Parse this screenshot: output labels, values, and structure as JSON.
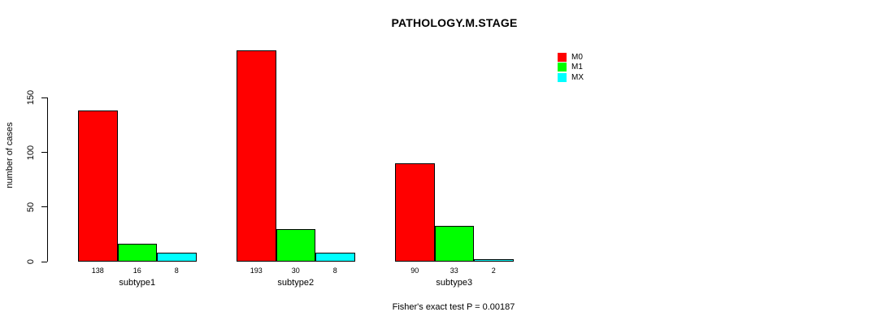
{
  "figure": {
    "title": "PATHOLOGY.M.STAGE",
    "y_axis_label": "number of cases",
    "footer_annotation": "Fisher's exact test P = 0.00187"
  },
  "legend": {
    "position": "top-right",
    "items": [
      {
        "label": "M0",
        "color": "#ff0000"
      },
      {
        "label": "M1",
        "color": "#00ff00"
      },
      {
        "label": "MX",
        "color": "#00ffff"
      }
    ]
  },
  "chart_data": {
    "type": "bar",
    "title": "PATHOLOGY.M.STAGE",
    "xlabel": "",
    "ylabel": "number of cases",
    "categories": [
      "subtype1",
      "subtype2",
      "subtype3"
    ],
    "series": [
      {
        "name": "M0",
        "color": "#ff0000",
        "values": [
          138,
          193,
          90
        ]
      },
      {
        "name": "M1",
        "color": "#00ff00",
        "values": [
          16,
          30,
          33
        ]
      },
      {
        "name": "MX",
        "color": "#00ffff",
        "values": [
          8,
          8,
          2
        ]
      }
    ],
    "bar_value_labels": [
      [
        138,
        16,
        8
      ],
      [
        193,
        30,
        8
      ],
      [
        90,
        33,
        2
      ]
    ],
    "yticks": [
      0,
      50,
      100,
      150
    ],
    "ylim": [
      0,
      200
    ],
    "grid": false,
    "bar_border_color": "#000000",
    "legend_position": "top-right",
    "annotation": "Fisher's exact test P = 0.00187"
  }
}
